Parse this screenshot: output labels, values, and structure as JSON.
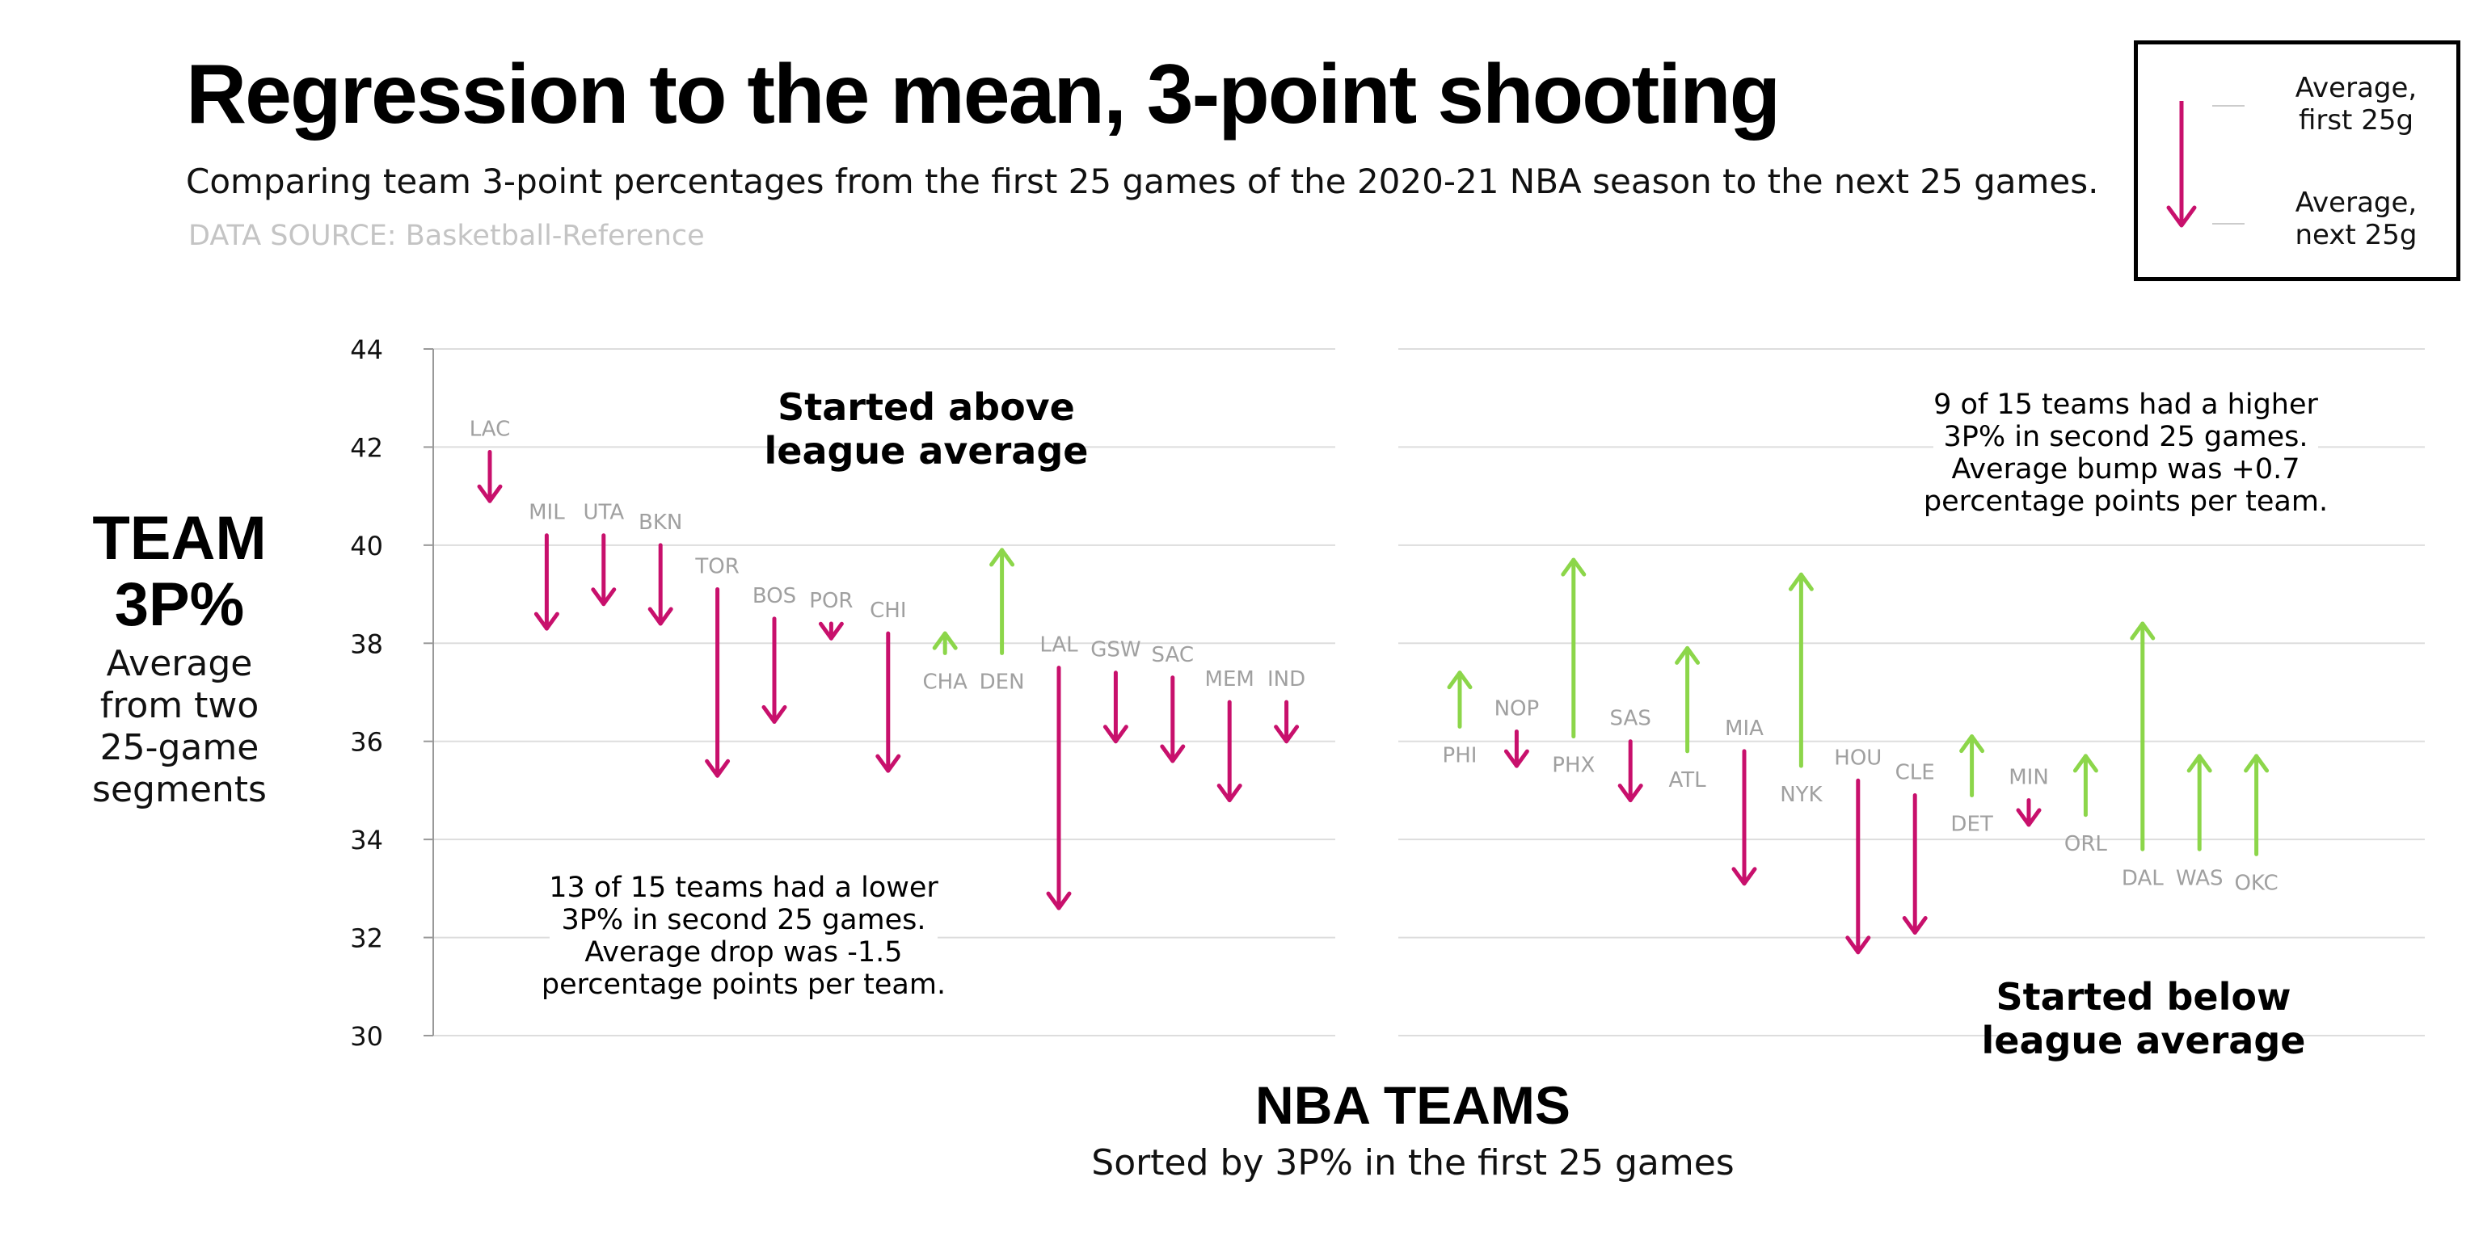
{
  "title": "Regression to the mean, 3-point shooting",
  "subtitle": "Comparing team 3-point percentages from the first 25 games of the 2020-21 NBA season to the next 25 games.",
  "source": "DATA SOURCE: Basketball-Reference",
  "legend": {
    "first_line1": "Average,",
    "first_line2": "first 25g",
    "next_line1": "Average,",
    "next_line2": "next 25g"
  },
  "y_axis": {
    "label_big_1": "TEAM",
    "label_big_2": "3P%",
    "label_small_1": "Average",
    "label_small_2": "from two",
    "label_small_3": "25-game",
    "label_small_4": "segments"
  },
  "x_axis": {
    "label_big": "NBA TEAMS",
    "label_small": "Sorted by 3P% in the first 25 games"
  },
  "annotations": {
    "above_1": "Started above",
    "above_2": "league average",
    "below_1": "Started below",
    "below_2": "league average",
    "note_left": [
      "13 of 15 teams had a lower",
      "3P% in second 25 games.",
      "Average drop was -1.5",
      "percentage points per team."
    ],
    "note_right": [
      "9 of 15 teams had a higher",
      "3P% in second 25 games.",
      "Average bump was +0.7",
      "percentage points per team."
    ]
  },
  "colors": {
    "decline": "#c8106c",
    "improve": "#8cd64a",
    "team_label": "#a0a0a0",
    "grid": "#dddddd"
  },
  "chart_data": {
    "type": "arrow",
    "ylim": [
      30,
      44
    ],
    "yticks": [
      30,
      32,
      34,
      36,
      38,
      40,
      42,
      44
    ],
    "panels": [
      {
        "name": "Started above league average",
        "teams": [
          {
            "team": "LAC",
            "first": 41.9,
            "next": 40.9
          },
          {
            "team": "MIL",
            "first": 40.2,
            "next": 38.3
          },
          {
            "team": "UTA",
            "first": 40.2,
            "next": 38.8
          },
          {
            "team": "BKN",
            "first": 40.0,
            "next": 38.4
          },
          {
            "team": "TOR",
            "first": 39.1,
            "next": 35.3
          },
          {
            "team": "BOS",
            "first": 38.5,
            "next": 36.4
          },
          {
            "team": "POR",
            "first": 38.4,
            "next": 38.1
          },
          {
            "team": "CHI",
            "first": 38.2,
            "next": 35.4
          },
          {
            "team": "CHA",
            "first": 37.8,
            "next": 38.2
          },
          {
            "team": "DEN",
            "first": 37.8,
            "next": 39.9
          },
          {
            "team": "LAL",
            "first": 37.5,
            "next": 32.6
          },
          {
            "team": "GSW",
            "first": 37.4,
            "next": 36.0
          },
          {
            "team": "SAC",
            "first": 37.3,
            "next": 35.6
          },
          {
            "team": "MEM",
            "first": 36.8,
            "next": 34.8
          },
          {
            "team": "IND",
            "first": 36.8,
            "next": 36.0
          }
        ]
      },
      {
        "name": "Started below league average",
        "teams": [
          {
            "team": "PHI",
            "first": 36.3,
            "next": 37.4
          },
          {
            "team": "NOP",
            "first": 36.2,
            "next": 35.5
          },
          {
            "team": "PHX",
            "first": 36.1,
            "next": 39.7
          },
          {
            "team": "SAS",
            "first": 36.0,
            "next": 34.8
          },
          {
            "team": "ATL",
            "first": 35.8,
            "next": 37.9
          },
          {
            "team": "MIA",
            "first": 35.8,
            "next": 33.1
          },
          {
            "team": "NYK",
            "first": 35.5,
            "next": 39.4
          },
          {
            "team": "HOU",
            "first": 35.2,
            "next": 31.7
          },
          {
            "team": "CLE",
            "first": 34.9,
            "next": 32.1
          },
          {
            "team": "DET",
            "first": 34.9,
            "next": 36.1
          },
          {
            "team": "MIN",
            "first": 34.8,
            "next": 34.3
          },
          {
            "team": "ORL",
            "first": 34.5,
            "next": 35.7
          },
          {
            "team": "DAL",
            "first": 33.8,
            "next": 38.4
          },
          {
            "team": "WAS",
            "first": 33.8,
            "next": 35.7
          },
          {
            "team": "OKC",
            "first": 33.7,
            "next": 35.7
          }
        ]
      }
    ]
  }
}
